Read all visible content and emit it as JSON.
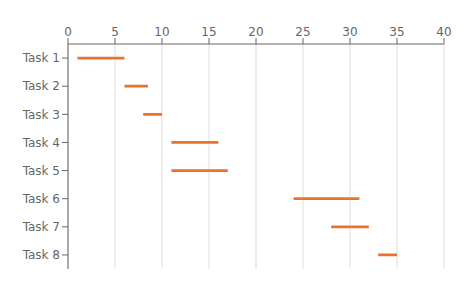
{
  "chart_data": {
    "type": "gantt",
    "orientation": "horizontal",
    "categories": [
      "Task 1",
      "Task 2",
      "Task 3",
      "Task 4",
      "Task 5",
      "Task 6",
      "Task 7",
      "Task 8"
    ],
    "starts": [
      1,
      6,
      8,
      11,
      11,
      24,
      28,
      33
    ],
    "durations": [
      5,
      2.5,
      2,
      5,
      6,
      7,
      4,
      2
    ],
    "color": "#E8732A",
    "xlim": [
      0,
      40
    ],
    "xticks": [
      0,
      5,
      10,
      15,
      20,
      25,
      30,
      35,
      40
    ],
    "grid": true
  }
}
